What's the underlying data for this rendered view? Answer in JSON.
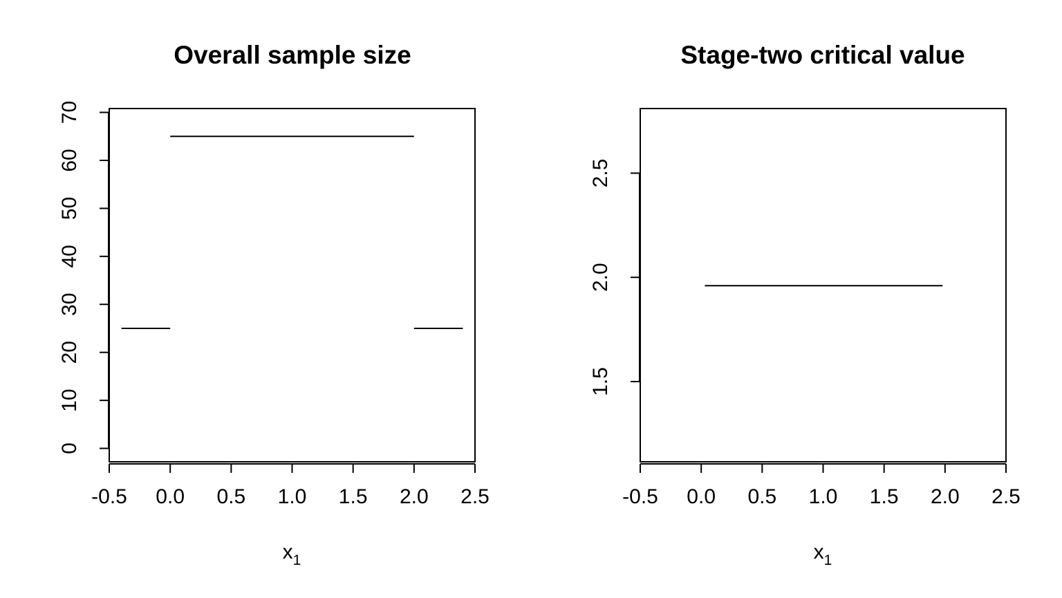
{
  "colors": {
    "background": "#ffffff",
    "ink": "#000000"
  },
  "chart_data": [
    {
      "type": "line",
      "title": "Overall sample size",
      "xlabel": "x",
      "xlabel_subscript": "1",
      "ylabel": "",
      "xlim": [
        -0.5,
        2.5
      ],
      "ylim": [
        -2.8,
        70.8
      ],
      "x_ticks": [
        "-0.5",
        "0.0",
        "0.5",
        "1.0",
        "1.5",
        "2.0",
        "2.5"
      ],
      "y_ticks": [
        "0",
        "10",
        "20",
        "30",
        "40",
        "50",
        "60",
        "70"
      ],
      "grid": false,
      "legend": "none",
      "series": [
        {
          "segments": [
            {
              "x": [
                -0.4,
                0.0
              ],
              "y": [
                25,
                25
              ]
            },
            {
              "x": [
                0.0,
                2.0
              ],
              "y": [
                65,
                65
              ]
            },
            {
              "x": [
                2.0,
                2.4
              ],
              "y": [
                25,
                25
              ]
            }
          ]
        }
      ]
    },
    {
      "type": "line",
      "title": "Stage-two critical value",
      "xlabel": "x",
      "xlabel_subscript": "1",
      "ylabel": "",
      "xlim": [
        -0.5,
        2.5
      ],
      "ylim": [
        1.115,
        2.81
      ],
      "x_ticks": [
        "-0.5",
        "0.0",
        "0.5",
        "1.0",
        "1.5",
        "2.0",
        "2.5"
      ],
      "y_ticks": [
        "1.5",
        "2.0",
        "2.5"
      ],
      "grid": false,
      "legend": "none",
      "series": [
        {
          "segments": [
            {
              "x": [
                0.03,
                1.98
              ],
              "y": [
                1.96,
                1.96
              ]
            }
          ]
        }
      ]
    }
  ]
}
